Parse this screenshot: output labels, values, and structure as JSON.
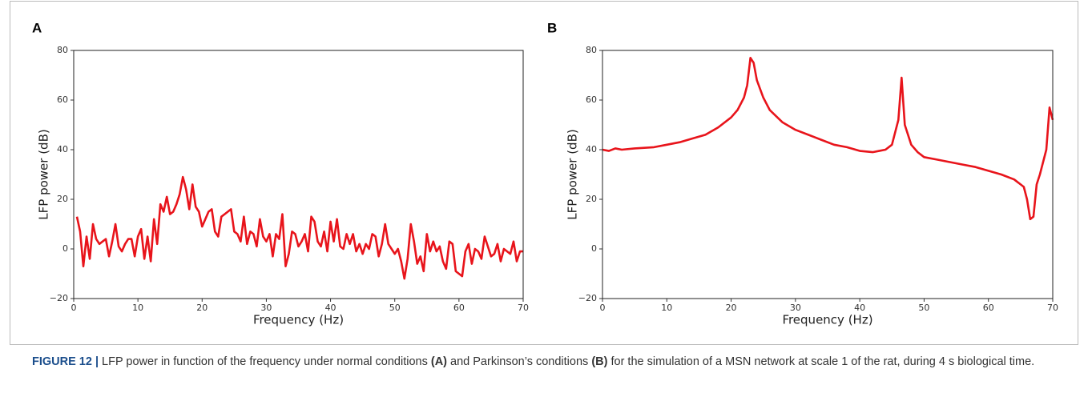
{
  "chart_data": [
    {
      "type": "line",
      "label": "A",
      "xlabel": "Frequency (Hz)",
      "ylabel": "LFP power (dB)",
      "xlim": [
        0,
        70
      ],
      "ylim": [
        -20,
        80
      ],
      "xticks": [
        0,
        10,
        20,
        30,
        40,
        50,
        60,
        70
      ],
      "yticks": [
        {
          "value": -20,
          "label": "−20"
        },
        0,
        20,
        40,
        60,
        80
      ],
      "series": [
        {
          "color": "#e8141b",
          "x": [
            0.5,
            1,
            1.5,
            2,
            2.5,
            3,
            3.5,
            4,
            4.5,
            5,
            5.5,
            6,
            6.5,
            7,
            7.5,
            8,
            8.5,
            9,
            9.5,
            10,
            10.5,
            11,
            11.5,
            12,
            12.5,
            13,
            13.5,
            14,
            14.5,
            15,
            15.5,
            16,
            16.5,
            17,
            17.5,
            18,
            18.5,
            19,
            19.5,
            20,
            20.5,
            21,
            21.5,
            22,
            22.5,
            23,
            23.5,
            24,
            24.5,
            25,
            25.5,
            26,
            26.5,
            27,
            27.5,
            28,
            28.5,
            29,
            29.5,
            30,
            30.5,
            31,
            31.5,
            32,
            32.5,
            33,
            33.5,
            34,
            34.5,
            35,
            35.5,
            36,
            36.5,
            37,
            37.5,
            38,
            38.5,
            39,
            39.5,
            40,
            40.5,
            41,
            41.5,
            42,
            42.5,
            43,
            43.5,
            44,
            44.5,
            45,
            45.5,
            46,
            46.5,
            47,
            47.5,
            48,
            48.5,
            49,
            49.5,
            50,
            50.5,
            51,
            51.5,
            52,
            52.5,
            53,
            53.5,
            54,
            54.5,
            55,
            55.5,
            56,
            56.5,
            57,
            57.5,
            58,
            58.5,
            59,
            59.5,
            60,
            60.5,
            61,
            61.5,
            62,
            62.5,
            63,
            63.5,
            64,
            64.5,
            65,
            65.5,
            66,
            66.5,
            67,
            67.5,
            68,
            68.5,
            69,
            69.5,
            70
          ],
          "values": [
            13,
            7,
            -7,
            5,
            -4,
            10,
            4,
            2,
            3,
            4,
            -3,
            3,
            10,
            1,
            -1,
            2,
            4,
            4,
            -3,
            5,
            8,
            -4,
            5,
            -5,
            12,
            2,
            18,
            15,
            21,
            14,
            15,
            18,
            22,
            29,
            24,
            16,
            26,
            17,
            15,
            9,
            12,
            15,
            16,
            7,
            5,
            13,
            14,
            15,
            16,
            7,
            6,
            3,
            13,
            2,
            7,
            6,
            1,
            12,
            5,
            3,
            6,
            -3,
            6,
            4,
            14,
            -7,
            -2,
            7,
            6,
            1,
            3,
            6,
            -1,
            13,
            11,
            3,
            1,
            7,
            -1,
            11,
            3,
            12,
            1,
            0,
            6,
            2,
            6,
            -1,
            2,
            -2,
            2,
            0,
            6,
            5,
            -3,
            2,
            10,
            2,
            0,
            -2,
            0,
            -5,
            -12,
            -4,
            10,
            3,
            -6,
            -3,
            -9,
            6,
            -1,
            3,
            -1,
            1,
            -5,
            -8,
            3,
            2,
            -9,
            -10,
            -11,
            -1,
            2,
            -6,
            0,
            -1,
            -4,
            5,
            1,
            -3,
            -2,
            2,
            -5,
            0,
            -1,
            -2,
            3,
            -5,
            -1,
            -1
          ]
        }
      ]
    },
    {
      "type": "line",
      "label": "B",
      "xlabel": "Frequency (Hz)",
      "ylabel": "LFP power (dB)",
      "xlim": [
        0,
        70
      ],
      "ylim": [
        -20,
        80
      ],
      "xticks": [
        0,
        10,
        20,
        30,
        40,
        50,
        60,
        70
      ],
      "yticks": [
        {
          "value": -20,
          "label": "−20"
        },
        0,
        20,
        40,
        60,
        80
      ],
      "series": [
        {
          "color": "#e8141b",
          "x": [
            0,
            1,
            2,
            3,
            5,
            8,
            10,
            12,
            14,
            16,
            18,
            20,
            21,
            22,
            22.5,
            23,
            23.5,
            24,
            25,
            26,
            28,
            30,
            32,
            34,
            36,
            38,
            40,
            42,
            43,
            44,
            45,
            46,
            46.5,
            47,
            48,
            49,
            50,
            52,
            54,
            56,
            58,
            60,
            62,
            64,
            65,
            65.5,
            66,
            66.5,
            67,
            67.5,
            68,
            69,
            69.5,
            70
          ],
          "values": [
            40,
            39.5,
            40.5,
            40,
            40.5,
            41,
            42,
            43,
            44.5,
            46,
            49,
            53,
            56,
            61,
            66,
            77,
            75,
            68,
            61,
            56,
            51,
            48,
            46,
            44,
            42,
            41,
            39.5,
            39,
            39.5,
            40,
            42,
            52,
            69,
            50,
            42,
            39,
            37,
            36,
            35,
            34,
            33,
            31.5,
            30,
            28,
            26,
            25,
            20,
            12,
            13,
            26,
            30,
            40,
            57,
            52
          ]
        }
      ]
    }
  ],
  "caption": [
    {
      "text": "FIGURE 12 |",
      "bold": true
    },
    {
      "text": " LFP power in function of the frequency under normal conditions ",
      "bold": false
    },
    {
      "text": "(A)",
      "bold": true
    },
    {
      "text": " and Parkinson’s conditions ",
      "bold": false
    },
    {
      "text": "(B)",
      "bold": true
    },
    {
      "text": " for the simulation of a MSN network at scale 1 of the rat, during 4 s biological time.",
      "bold": false
    }
  ]
}
